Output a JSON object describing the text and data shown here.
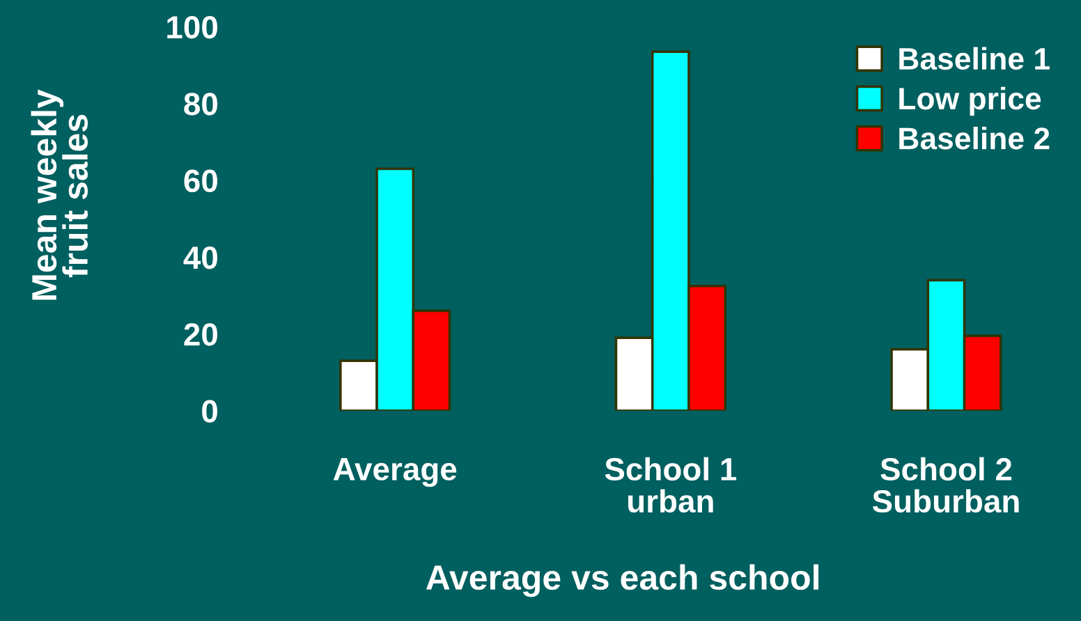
{
  "chart_data": {
    "type": "bar",
    "xlabel": "Average vs each school",
    "ylabel": "Mean weekly\nfruit sales",
    "categories": [
      "Average",
      "School 1\nurban",
      "School 2\nSuburban"
    ],
    "series": [
      {
        "name": "Baseline 1",
        "color": "#ffffff",
        "values": [
          13,
          19,
          16
        ]
      },
      {
        "name": "Low price",
        "color": "#00ffff",
        "values": [
          63,
          93.5,
          34
        ]
      },
      {
        "name": "Baseline 2",
        "color": "#ff0000",
        "values": [
          26,
          32.5,
          19.5
        ]
      }
    ],
    "ylim": [
      0,
      100
    ],
    "yticks": [
      0,
      20,
      40,
      60,
      80,
      100
    ],
    "grid": false,
    "legend": "top right"
  }
}
